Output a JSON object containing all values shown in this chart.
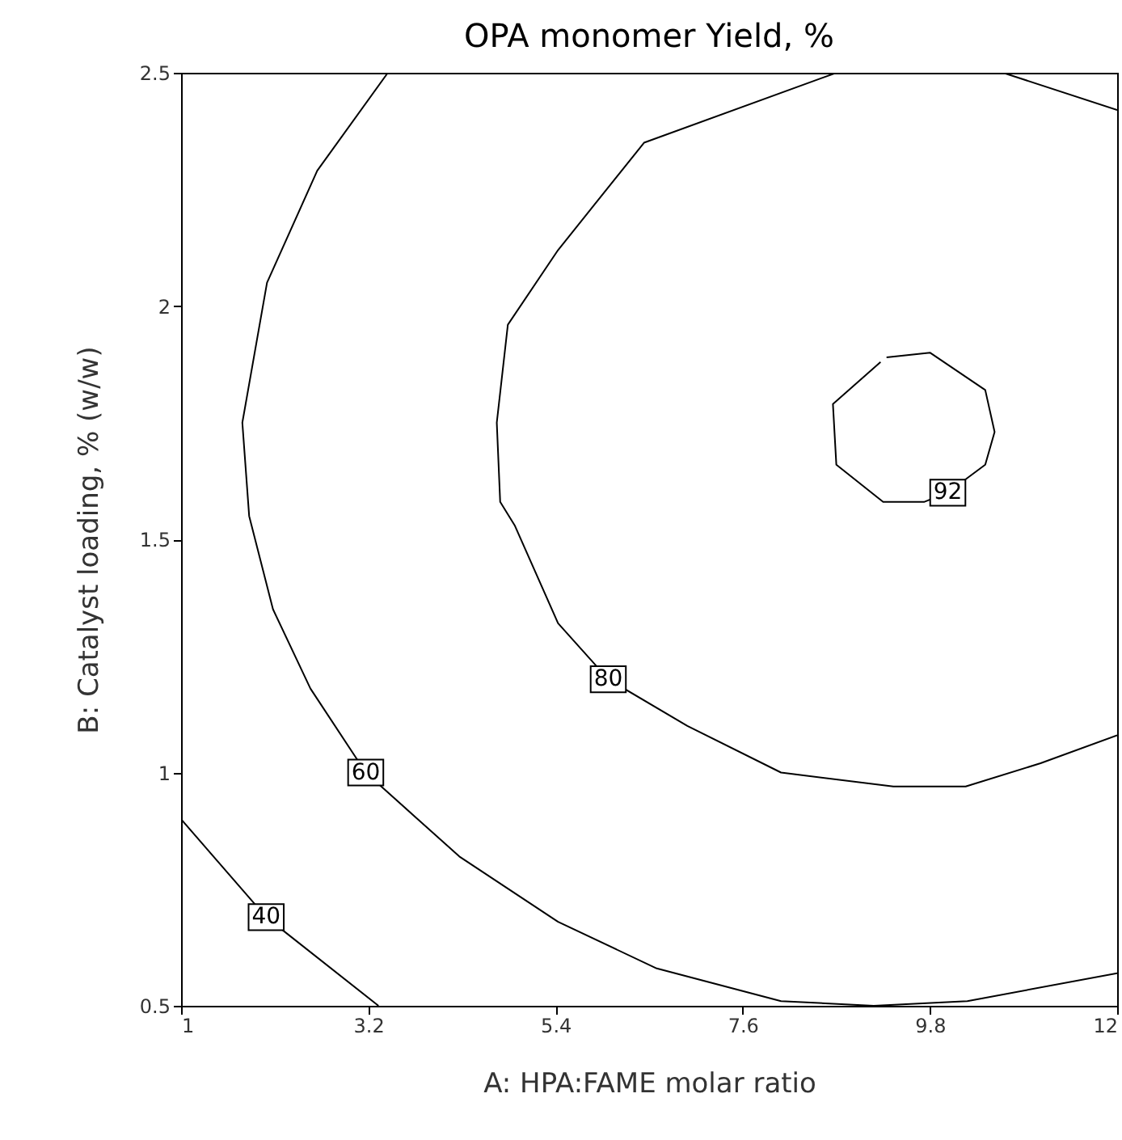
{
  "chart_data": {
    "type": "line",
    "title": "OPA monomer Yield, %",
    "xlabel": "A: HPA:FAME molar ratio",
    "ylabel": "B: Catalyst loading, % (w/w)",
    "xlim": [
      1,
      12
    ],
    "xticks": [
      1,
      3.2,
      5.4,
      7.6,
      9.8,
      12
    ],
    "ylim": [
      0.5,
      2.5
    ],
    "yticks": [
      0.5,
      1,
      1.5,
      2,
      2.5
    ],
    "grid": false,
    "legend": false,
    "marker": "none",
    "line_style": "solid",
    "series": [
      {
        "name": "40",
        "color": "#000000",
        "x": [
          1.0,
          2.0,
          3.32
        ],
        "values": [
          0.9,
          0.69,
          0.5
        ]
      },
      {
        "name": "60",
        "color": "#000000",
        "x": [
          3.43,
          2.6,
          2.01,
          1.72,
          1.8,
          2.08,
          2.52,
          3.17,
          4.27,
          5.43,
          6.59,
          8.05,
          9.14,
          10.24,
          12.0
        ],
        "values": [
          2.5,
          2.29,
          2.05,
          1.75,
          1.55,
          1.35,
          1.18,
          1.0,
          0.82,
          0.68,
          0.58,
          0.51,
          0.5,
          0.51,
          0.57
        ]
      },
      {
        "name": "80",
        "color": "#000000",
        "x": [
          8.7,
          6.44,
          5.43,
          4.84,
          4.71,
          4.75,
          4.92,
          5.43,
          6.02,
          6.95,
          8.05,
          9.37,
          10.22,
          11.1,
          12.0,
          null,
          10.66,
          12.0
        ],
        "values": [
          2.5,
          2.35,
          2.12,
          1.96,
          1.75,
          1.58,
          1.53,
          1.32,
          1.2,
          1.1,
          1.0,
          0.97,
          0.97,
          1.02,
          1.08,
          null,
          2.5,
          2.42
        ]
      },
      {
        "name": "92",
        "color": "#000000",
        "x": [
          9.29,
          9.8,
          10.45,
          10.56,
          10.45,
          10.01,
          9.73,
          9.25,
          8.7,
          8.66,
          9.22
        ],
        "values": [
          1.89,
          1.9,
          1.82,
          1.73,
          1.66,
          1.6,
          1.58,
          1.58,
          1.66,
          1.79,
          1.88
        ]
      }
    ]
  }
}
